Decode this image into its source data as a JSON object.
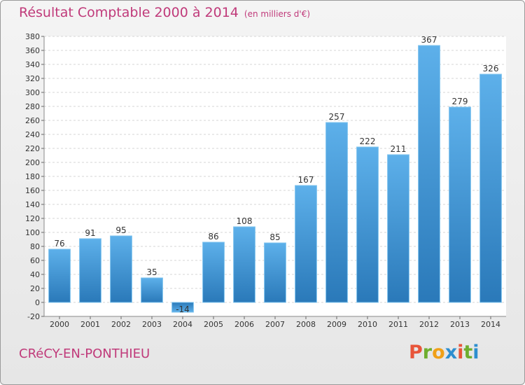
{
  "header": {
    "title": "Résultat Comptable 2000 à 2014",
    "subtitle": "(en milliers d'€)"
  },
  "footer": {
    "city": "CRéCY-EN-PONTHIEU",
    "logo": [
      "P",
      "r",
      "o",
      "x",
      "i",
      "t",
      "i"
    ]
  },
  "colors": {
    "accent": "#c03a7a",
    "bar_light": "#5db0ea",
    "bar_dark": "#2a79b9",
    "logo": [
      "#e8553a",
      "#6fae2f",
      "#f0a018",
      "#2d8ecf",
      "#e8553a",
      "#6fae2f",
      "#2d8ecf"
    ]
  },
  "chart_data": {
    "type": "bar",
    "categories": [
      "2000",
      "2001",
      "2002",
      "2003",
      "2004",
      "2005",
      "2006",
      "2007",
      "2008",
      "2009",
      "2010",
      "2011",
      "2012",
      "2013",
      "2014"
    ],
    "values": [
      76,
      91,
      95,
      35,
      -14,
      86,
      108,
      85,
      167,
      257,
      222,
      211,
      367,
      279,
      326
    ],
    "title": "Résultat Comptable 2000 à 2014",
    "ylim": [
      -20,
      380
    ],
    "yticks": [
      -20,
      0,
      20,
      40,
      60,
      80,
      100,
      120,
      140,
      160,
      180,
      200,
      220,
      240,
      260,
      280,
      300,
      320,
      340,
      360,
      380
    ],
    "grid": true,
    "data_labels": true
  }
}
